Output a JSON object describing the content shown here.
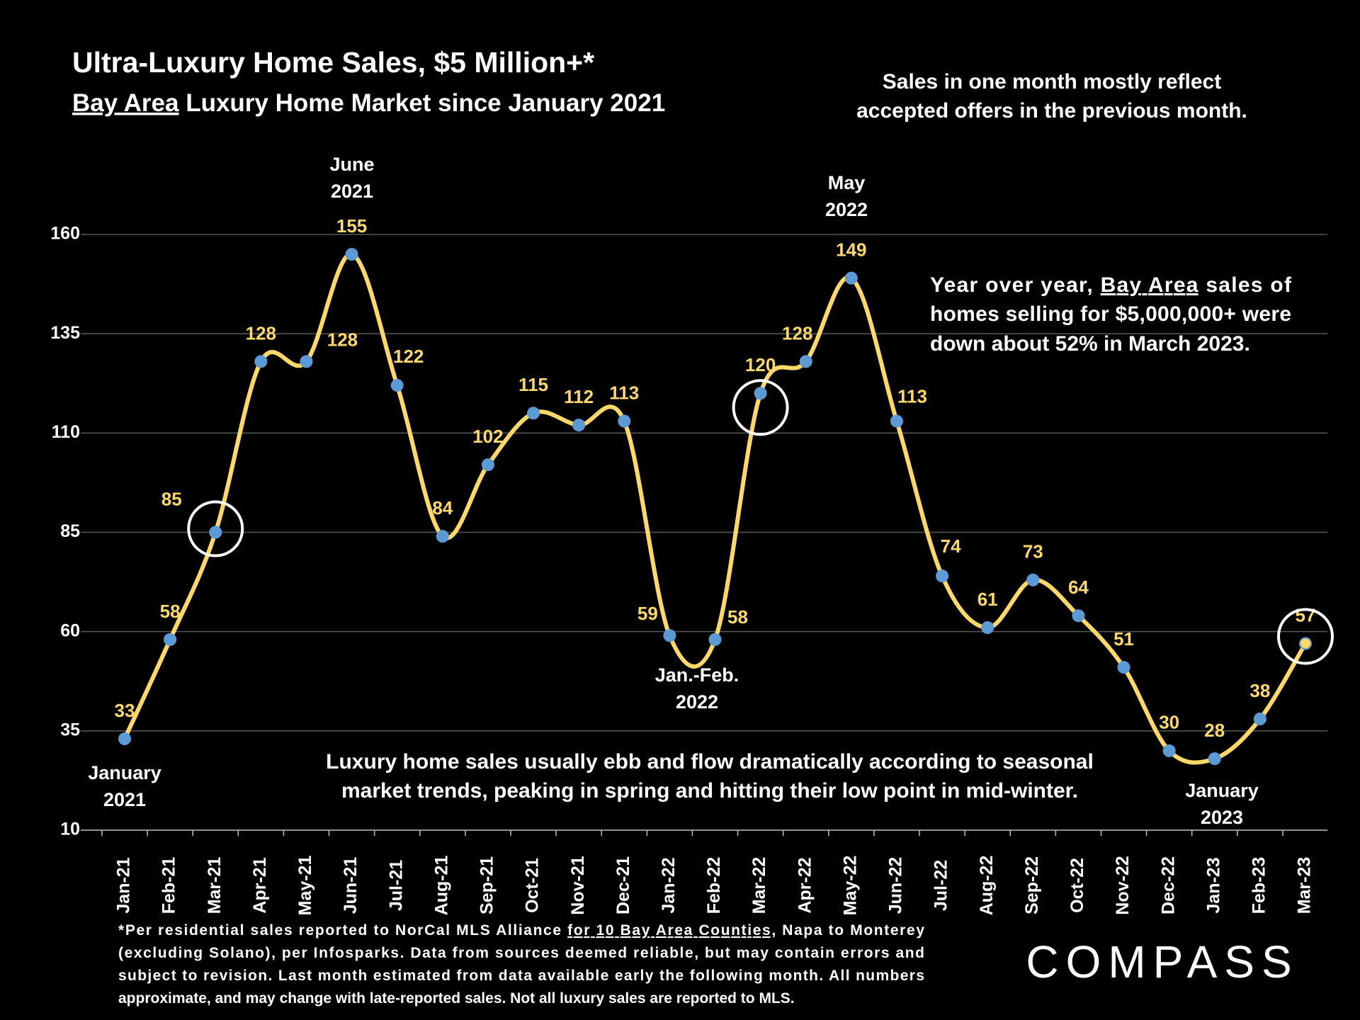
{
  "chart_data": {
    "type": "line",
    "title": "Ultra-Luxury Home Sales, $5 Million+*",
    "subtitle": [
      "Bay Area",
      " Luxury Home Market since January 2021"
    ],
    "categories": [
      "Jan-21",
      "Feb-21",
      "Mar-21",
      "Apr-21",
      "May-21",
      "Jun-21",
      "Jul-21",
      "Aug-21",
      "Sep-21",
      "Oct-21",
      "Nov-21",
      "Dec-21",
      "Jan-22",
      "Feb-22",
      "Mar-22",
      "Apr-22",
      "May-22",
      "Jun-22",
      "Jul-22",
      "Aug-22",
      "Sep-22",
      "Oct-22",
      "Nov-22",
      "Dec-22",
      "Jan-23",
      "Feb-23",
      "Mar-23"
    ],
    "values": [
      33,
      58,
      85,
      128,
      128,
      155,
      122,
      84,
      102,
      115,
      112,
      113,
      59,
      58,
      120,
      128,
      149,
      113,
      74,
      61,
      73,
      64,
      51,
      30,
      28,
      38,
      57
    ],
    "color": "#ffd966",
    "marker_color": "#5b9bd5",
    "ylim": [
      10,
      160
    ],
    "yticks": [
      10,
      35,
      60,
      85,
      110,
      135,
      160
    ],
    "grid": true,
    "annotations": [
      [
        "June",
        "2021"
      ],
      [
        "May",
        "2022"
      ],
      [
        "Jan.-Feb.",
        "2022"
      ],
      [
        "January",
        "2021"
      ],
      [
        "January",
        "2023"
      ]
    ],
    "sales_note": [
      "Sales in one month mostly reflect",
      "accepted offers in the previous month."
    ],
    "yoy_note": [
      [
        "Year over year, ",
        "Bay Area",
        " sales of"
      ],
      [
        "homes selling for $5,000,000+ were"
      ],
      [
        "down about 52% in March 2023."
      ]
    ],
    "seasonal_note": [
      "Luxury home sales usually ebb and flow dramatically according to seasonal",
      "market trends, peaking in spring and hitting their low point in mid-winter."
    ],
    "footnote": [
      [
        "*Per residential sales reported to NorCal MLS Alliance ",
        "for 10 Bay Area Counties",
        ", Napa to Monterey"
      ],
      [
        "(excluding Solano), per Infosparks. Data from sources deemed reliable, but may contain errors and"
      ],
      [
        "subject to revision. Last month estimated from data available early the following month. All numbers"
      ],
      [
        "approximate, and may change with late-reported sales. Not all luxury sales are reported to MLS."
      ]
    ],
    "brand": "COMPASS"
  }
}
